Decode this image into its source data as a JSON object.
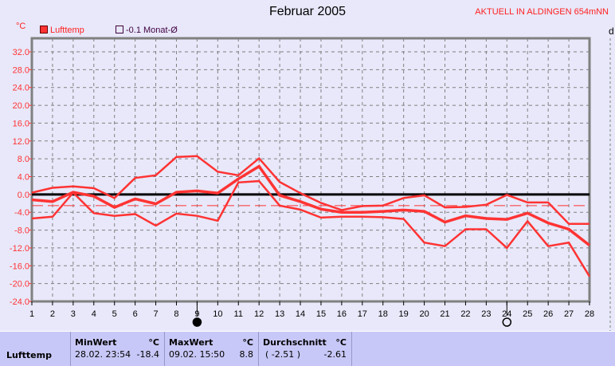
{
  "header": {
    "title": "Februar 2005",
    "station": "AKTUELL IN ALDINGEN 654mNN",
    "unit": "°C",
    "right_label": "d"
  },
  "legend": [
    {
      "label": "Lufttemp",
      "color": "#ff3333"
    },
    {
      "label": "-0.1 Monat-Ø",
      "color": "#400040"
    }
  ],
  "moon_phases": [
    {
      "day": 9,
      "icon": "new-moon-icon"
    },
    {
      "day": 24,
      "icon": "full-moon-icon"
    }
  ],
  "chart_data": {
    "type": "line",
    "title": "Februar 2005",
    "ylabel": "°C",
    "x": [
      1,
      2,
      3,
      4,
      5,
      6,
      7,
      8,
      9,
      10,
      11,
      12,
      13,
      14,
      15,
      16,
      17,
      18,
      19,
      20,
      21,
      22,
      23,
      24,
      25,
      26,
      27,
      28
    ],
    "ylim": [
      -24,
      32
    ],
    "yticks": [
      "32.0",
      "28.0",
      "24.0",
      "20.0",
      "16.0",
      "12.0",
      "8.0",
      "4.0",
      "0.0",
      "-4.0",
      "-8.0",
      "-12.0",
      "-16.0",
      "-20.0",
      "-24.0"
    ],
    "grid": true,
    "series": [
      {
        "role": "max",
        "values": [
          0.4,
          1.5,
          1.8,
          1.4,
          -0.8,
          3.7,
          4.3,
          8.4,
          8.6,
          5.1,
          4.3,
          8.1,
          2.8,
          0.3,
          -1.9,
          -3.5,
          -2.6,
          -2.5,
          -0.8,
          -0.2,
          -2.9,
          -2.8,
          -2.3,
          -0.1,
          -1.8,
          -1.8,
          -6.6,
          -6.6
        ]
      },
      {
        "role": "mean",
        "values": [
          -1.2,
          -1.6,
          0.5,
          -0.4,
          -2.9,
          -1.0,
          -2.1,
          0.5,
          0.8,
          0.3,
          3.5,
          6.3,
          -0.2,
          -1.6,
          -3.3,
          -4.0,
          -4.0,
          -3.8,
          -3.5,
          -3.8,
          -6.2,
          -4.8,
          -5.4,
          -5.6,
          -4.2,
          -6.4,
          -7.8,
          -11.4
        ]
      },
      {
        "role": "min",
        "values": [
          -5.4,
          -5.0,
          0.4,
          -4.2,
          -4.8,
          -4.4,
          -7.0,
          -4.3,
          -4.8,
          -5.9,
          2.7,
          3.0,
          -2.5,
          -3.4,
          -5.2,
          -5.0,
          -5.0,
          -5.1,
          -5.5,
          -10.8,
          -11.6,
          -7.8,
          -7.8,
          -12.0,
          -6.0,
          -11.6,
          -10.8,
          -18.4
        ]
      }
    ],
    "reference_line": -2.5,
    "series_color": "#ff3333"
  },
  "table": {
    "row_label": "Lufttemp",
    "columns": [
      {
        "header": "MinWert",
        "unit": "°C",
        "time": "28.02.  23:54",
        "value": "-18.4"
      },
      {
        "header": "MaxWert",
        "unit": "°C",
        "time": "09.02.  15:50",
        "value": "8.8"
      },
      {
        "header": "Durchschnitt",
        "unit": "°C",
        "time": "( -2.51 )",
        "value": "-2.61"
      }
    ]
  }
}
